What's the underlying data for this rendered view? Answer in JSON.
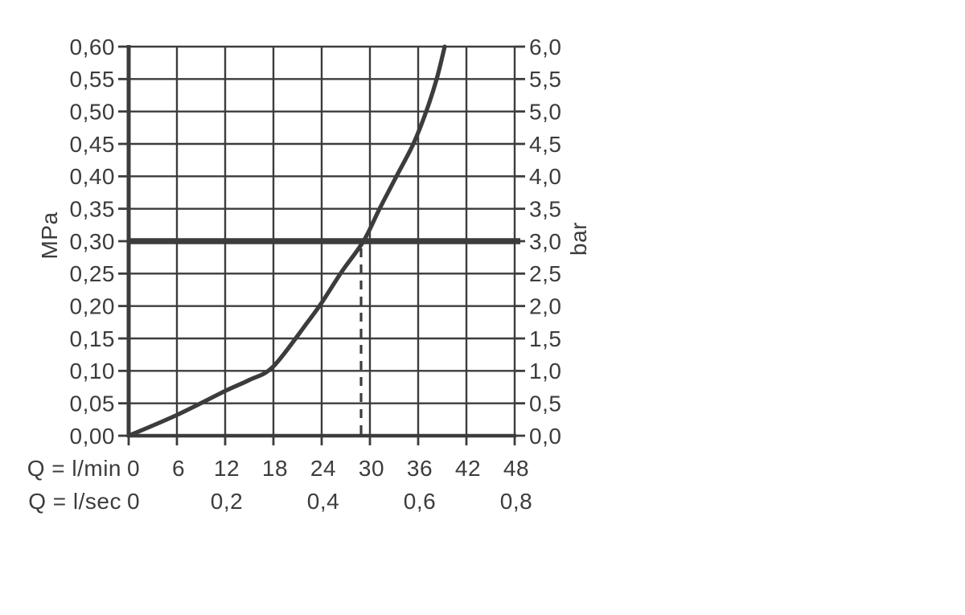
{
  "page": {
    "background": "#ffffff"
  },
  "chart_data": {
    "type": "line",
    "title": "",
    "description": "Pressure vs flow-rate diagram with reference line at 0,30 MPa / 3,0 bar and dashed guide at ~29 l/min",
    "grid": true,
    "legend": false,
    "colors": {
      "ink": "#3c3c3c",
      "background": "#ffffff"
    },
    "x_axis": {
      "range_lmin": [
        0,
        48
      ],
      "row1_label": "Q = l/min",
      "row1_ticks": [
        {
          "label": "0",
          "q": 0
        },
        {
          "label": "6",
          "q": 6
        },
        {
          "label": "12",
          "q": 12
        },
        {
          "label": "18",
          "q": 18
        },
        {
          "label": "24",
          "q": 24
        },
        {
          "label": "30",
          "q": 30
        },
        {
          "label": "36",
          "q": 36
        },
        {
          "label": "42",
          "q": 42
        },
        {
          "label": "48",
          "q": 48
        }
      ],
      "row2_label": "Q = l/sec",
      "row2_ticks": [
        {
          "label": "0",
          "q": 0
        },
        {
          "label": "0,2",
          "q": 12
        },
        {
          "label": "0,4",
          "q": 24
        },
        {
          "label": "0,6",
          "q": 36
        },
        {
          "label": "0,8",
          "q": 48
        }
      ]
    },
    "y_left": {
      "label": "MPa",
      "range": [
        0,
        0.6
      ],
      "ticks": [
        {
          "label": "0,60",
          "v": 0.6
        },
        {
          "label": "0,55",
          "v": 0.55
        },
        {
          "label": "0,50",
          "v": 0.5
        },
        {
          "label": "0,45",
          "v": 0.45
        },
        {
          "label": "0,40",
          "v": 0.4
        },
        {
          "label": "0,35",
          "v": 0.35
        },
        {
          "label": "0,30",
          "v": 0.3
        },
        {
          "label": "0,25",
          "v": 0.25
        },
        {
          "label": "0,20",
          "v": 0.2
        },
        {
          "label": "0,15",
          "v": 0.15
        },
        {
          "label": "0,10",
          "v": 0.1
        },
        {
          "label": "0,05",
          "v": 0.05
        },
        {
          "label": "0,00",
          "v": 0.0
        }
      ]
    },
    "y_right": {
      "label": "bar",
      "range": [
        0,
        6
      ],
      "ticks": [
        {
          "label": "6,0",
          "v": 6.0
        },
        {
          "label": "5,5",
          "v": 5.5
        },
        {
          "label": "5,0",
          "v": 5.0
        },
        {
          "label": "4,5",
          "v": 4.5
        },
        {
          "label": "4,0",
          "v": 4.0
        },
        {
          "label": "3,5",
          "v": 3.5
        },
        {
          "label": "3,0",
          "v": 3.0
        },
        {
          "label": "2,5",
          "v": 2.5
        },
        {
          "label": "2,0",
          "v": 2.0
        },
        {
          "label": "1,5",
          "v": 1.5
        },
        {
          "label": "1,0",
          "v": 1.0
        },
        {
          "label": "0,5",
          "v": 0.5
        },
        {
          "label": "0,0",
          "v": 0.0
        }
      ]
    },
    "reference_line_mpa": 0.3,
    "dashed_guide": {
      "q": 28.9,
      "to_mpa": 0.3
    },
    "series": [
      {
        "name": "pressure-flow-curve",
        "points_q_mpa": [
          [
            0,
            0.0
          ],
          [
            6,
            0.032
          ],
          [
            12,
            0.069
          ],
          [
            15,
            0.086
          ],
          [
            18,
            0.107
          ],
          [
            22.3,
            0.176
          ],
          [
            24,
            0.205
          ],
          [
            26.5,
            0.253
          ],
          [
            29.2,
            0.3
          ],
          [
            31.2,
            0.35
          ],
          [
            33.3,
            0.4
          ],
          [
            35.4,
            0.45
          ],
          [
            37.0,
            0.5
          ],
          [
            38.3,
            0.55
          ],
          [
            39.3,
            0.6
          ]
        ]
      }
    ]
  }
}
